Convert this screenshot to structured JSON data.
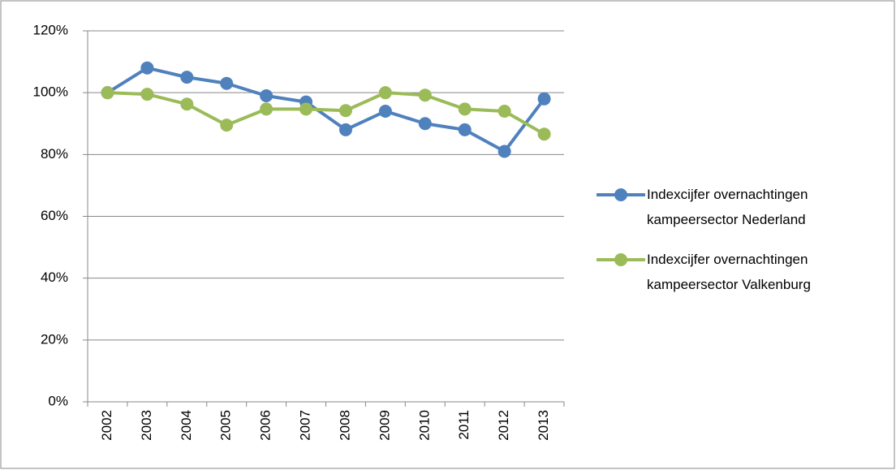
{
  "chart_data": {
    "type": "line",
    "categories": [
      "2002",
      "2003",
      "2004",
      "2005",
      "2006",
      "2007",
      "2008",
      "2009",
      "2010",
      "2011",
      "2012",
      "2013"
    ],
    "series": [
      {
        "name": "Indexcijfer overnachtingen kampeersector Nederland",
        "color": "#4f81bd",
        "values": [
          100,
          108,
          105,
          103,
          99,
          97,
          88,
          94,
          90,
          88,
          81,
          98
        ]
      },
      {
        "name": "Indexcijfer overnachtingen kampeersector Valkenburg",
        "color": "#9bbb59",
        "values": [
          100,
          99.5,
          96.3,
          89.5,
          94.7,
          94.7,
          94.2,
          100,
          99.2,
          94.7,
          94,
          86.6
        ]
      }
    ],
    "ylim": [
      0,
      120
    ],
    "yticks": [
      {
        "value": 0,
        "label": "0%"
      },
      {
        "value": 20,
        "label": "20%"
      },
      {
        "value": 40,
        "label": "40%"
      },
      {
        "value": 60,
        "label": "60%"
      },
      {
        "value": 80,
        "label": "80%"
      },
      {
        "value": 100,
        "label": "100%"
      },
      {
        "value": 120,
        "label": "120%"
      }
    ],
    "grid": true,
    "legend": "right"
  }
}
